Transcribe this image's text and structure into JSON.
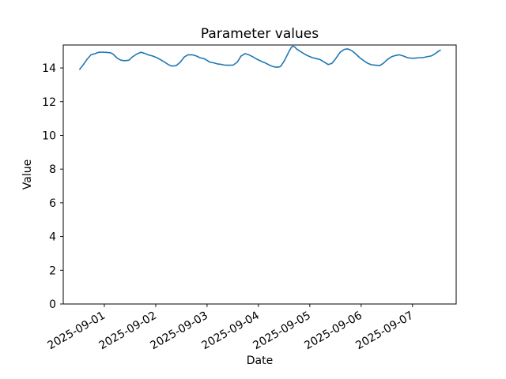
{
  "figure": {
    "background": "#ffffff",
    "axes_color": "#000000",
    "text_color": "#000000"
  },
  "chart_data": {
    "type": "line",
    "title": "Parameter values",
    "xlabel": "Date",
    "ylabel": "Value",
    "grid": false,
    "legend": "none",
    "x_unit": "days since 2025-08-31 12:00",
    "xlim": [
      -0.3,
      7.35
    ],
    "ylim": [
      0,
      15.36
    ],
    "x_tick_labels": [
      "2025-09-01",
      "2025-09-02",
      "2025-09-03",
      "2025-09-04",
      "2025-09-05",
      "2025-09-06",
      "2025-09-07"
    ],
    "x_tick_positions_days": [
      0.5,
      1.5,
      2.5,
      3.5,
      4.5,
      5.5,
      6.5
    ],
    "x_tick_rotation_deg": 30,
    "y_ticks": [
      0,
      2,
      4,
      6,
      8,
      10,
      12,
      14
    ],
    "series": [
      {
        "name": "parameter-values",
        "color": "#1f77b4",
        "points": [
          [
            0.02,
            13.92
          ],
          [
            0.08,
            14.15
          ],
          [
            0.16,
            14.5
          ],
          [
            0.24,
            14.78
          ],
          [
            0.32,
            14.85
          ],
          [
            0.39,
            14.93
          ],
          [
            0.47,
            14.94
          ],
          [
            0.55,
            14.92
          ],
          [
            0.62,
            14.9
          ],
          [
            0.67,
            14.82
          ],
          [
            0.75,
            14.58
          ],
          [
            0.82,
            14.46
          ],
          [
            0.9,
            14.43
          ],
          [
            0.98,
            14.46
          ],
          [
            1.05,
            14.66
          ],
          [
            1.13,
            14.82
          ],
          [
            1.21,
            14.93
          ],
          [
            1.29,
            14.86
          ],
          [
            1.36,
            14.77
          ],
          [
            1.44,
            14.71
          ],
          [
            1.52,
            14.61
          ],
          [
            1.59,
            14.5
          ],
          [
            1.67,
            14.35
          ],
          [
            1.75,
            14.19
          ],
          [
            1.82,
            14.11
          ],
          [
            1.9,
            14.14
          ],
          [
            1.98,
            14.35
          ],
          [
            2.06,
            14.66
          ],
          [
            2.13,
            14.78
          ],
          [
            2.21,
            14.78
          ],
          [
            2.29,
            14.71
          ],
          [
            2.36,
            14.61
          ],
          [
            2.44,
            14.55
          ],
          [
            2.5,
            14.45
          ],
          [
            2.55,
            14.35
          ],
          [
            2.63,
            14.3
          ],
          [
            2.7,
            14.24
          ],
          [
            2.78,
            14.21
          ],
          [
            2.86,
            14.16
          ],
          [
            2.93,
            14.16
          ],
          [
            3.01,
            14.17
          ],
          [
            3.09,
            14.35
          ],
          [
            3.16,
            14.7
          ],
          [
            3.24,
            14.85
          ],
          [
            3.32,
            14.77
          ],
          [
            3.39,
            14.66
          ],
          [
            3.47,
            14.52
          ],
          [
            3.55,
            14.4
          ],
          [
            3.63,
            14.3
          ],
          [
            3.7,
            14.19
          ],
          [
            3.78,
            14.08
          ],
          [
            3.86,
            14.04
          ],
          [
            3.93,
            14.08
          ],
          [
            4.01,
            14.45
          ],
          [
            4.09,
            14.95
          ],
          [
            4.14,
            15.22
          ],
          [
            4.17,
            15.29
          ],
          [
            4.21,
            15.24
          ],
          [
            4.24,
            15.13
          ],
          [
            4.32,
            14.97
          ],
          [
            4.4,
            14.82
          ],
          [
            4.47,
            14.71
          ],
          [
            4.55,
            14.61
          ],
          [
            4.63,
            14.55
          ],
          [
            4.7,
            14.5
          ],
          [
            4.78,
            14.35
          ],
          [
            4.86,
            14.2
          ],
          [
            4.93,
            14.27
          ],
          [
            5.01,
            14.58
          ],
          [
            5.09,
            14.93
          ],
          [
            5.17,
            15.1
          ],
          [
            5.24,
            15.13
          ],
          [
            5.32,
            15.02
          ],
          [
            5.4,
            14.82
          ],
          [
            5.47,
            14.61
          ],
          [
            5.55,
            14.43
          ],
          [
            5.63,
            14.27
          ],
          [
            5.7,
            14.19
          ],
          [
            5.78,
            14.16
          ],
          [
            5.86,
            14.14
          ],
          [
            5.93,
            14.27
          ],
          [
            6.01,
            14.5
          ],
          [
            6.09,
            14.66
          ],
          [
            6.17,
            14.74
          ],
          [
            6.24,
            14.78
          ],
          [
            6.32,
            14.71
          ],
          [
            6.4,
            14.61
          ],
          [
            6.47,
            14.58
          ],
          [
            6.55,
            14.58
          ],
          [
            6.63,
            14.61
          ],
          [
            6.7,
            14.61
          ],
          [
            6.78,
            14.66
          ],
          [
            6.86,
            14.71
          ],
          [
            6.93,
            14.82
          ],
          [
            7.01,
            15.0
          ],
          [
            7.04,
            15.05
          ]
        ]
      }
    ]
  }
}
